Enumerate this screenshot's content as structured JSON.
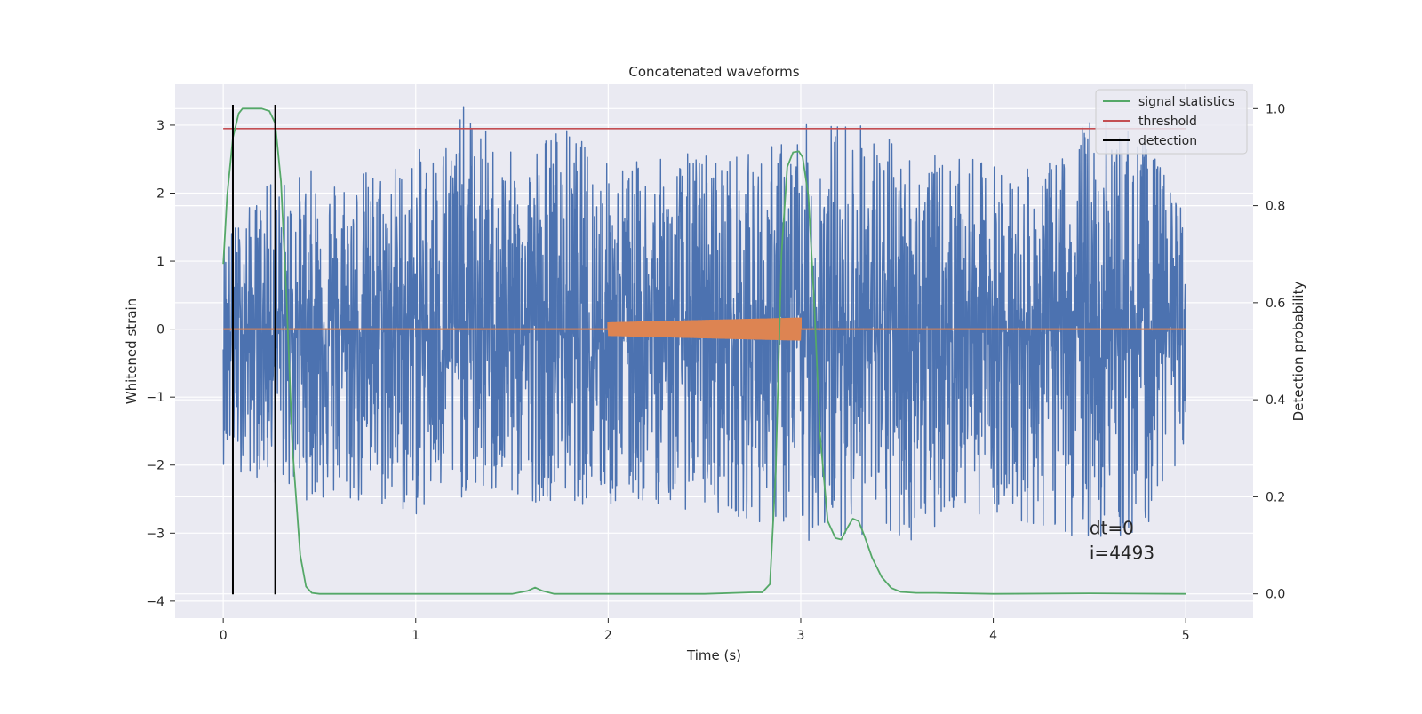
{
  "chart_data": {
    "type": "line",
    "title": "Concatenated waveforms",
    "xlabel": "Time (s)",
    "ylabel": "Whitened strain",
    "y2label": "Detection probability",
    "xlim": [
      -0.25,
      5.35
    ],
    "ylim": [
      -4.25,
      3.6
    ],
    "y2lim": [
      -0.05,
      1.05
    ],
    "xticks": [
      0,
      1,
      2,
      3,
      4,
      5
    ],
    "yticks": [
      -4,
      -3,
      -2,
      -1,
      0,
      1,
      2,
      3
    ],
    "y2ticks": [
      0.0,
      0.2,
      0.4,
      0.6,
      0.8,
      1.0
    ],
    "xtick_labels": [
      "0",
      "1",
      "2",
      "3",
      "4",
      "5"
    ],
    "ytick_labels": [
      "−4",
      "−3",
      "−2",
      "−1",
      "0",
      "1",
      "2",
      "3"
    ],
    "y2tick_labels": [
      "0.0",
      "0.2",
      "0.4",
      "0.6",
      "0.8",
      "1.0"
    ],
    "grid": true,
    "legend_position": "top-right",
    "colors": {
      "background": "#eaeaf2",
      "grid": "#ffffff",
      "noise": "#4c72b0",
      "injection": "#dd8452",
      "signal_statistics": "#55a868",
      "threshold": "#c44e52",
      "detection": "#000000"
    },
    "series": [
      {
        "name": "signal statistics",
        "axis": "right",
        "x": [
          0.0,
          0.02,
          0.05,
          0.08,
          0.1,
          0.15,
          0.2,
          0.24,
          0.27,
          0.3,
          0.33,
          0.36,
          0.4,
          0.43,
          0.46,
          0.5,
          1.0,
          1.5,
          1.58,
          1.62,
          1.66,
          1.72,
          2.0,
          2.5,
          2.75,
          2.8,
          2.84,
          2.87,
          2.9,
          2.93,
          2.96,
          2.99,
          3.01,
          3.04,
          3.07,
          3.1,
          3.14,
          3.18,
          3.21,
          3.24,
          3.27,
          3.3,
          3.33,
          3.37,
          3.42,
          3.47,
          3.52,
          3.6,
          3.7,
          4.0,
          4.5,
          5.0
        ],
        "y": [
          0.68,
          0.82,
          0.94,
          0.99,
          1.0,
          1.0,
          1.0,
          0.995,
          0.97,
          0.85,
          0.6,
          0.3,
          0.08,
          0.015,
          0.002,
          0.0,
          0.0,
          0.0,
          0.006,
          0.013,
          0.006,
          0.0,
          0.0,
          0.0,
          0.003,
          0.003,
          0.02,
          0.25,
          0.7,
          0.88,
          0.91,
          0.912,
          0.9,
          0.82,
          0.6,
          0.33,
          0.15,
          0.115,
          0.112,
          0.135,
          0.155,
          0.15,
          0.12,
          0.075,
          0.035,
          0.012,
          0.004,
          0.002,
          0.002,
          0.0,
          0.001,
          0.0
        ]
      },
      {
        "name": "threshold",
        "axis": "left",
        "x": [
          0.0,
          5.0
        ],
        "y": [
          2.95,
          2.95
        ]
      },
      {
        "name": "detection",
        "axis": "left",
        "x": [
          0.05,
          0.27
        ],
        "y": [
          -3.9,
          3.3
        ]
      }
    ],
    "noise_envelope": {
      "axis": "left",
      "t": [
        0.0,
        0.25,
        0.5,
        0.75,
        1.0,
        1.25,
        1.5,
        1.75,
        2.0,
        2.25,
        2.5,
        2.75,
        3.0,
        3.25,
        3.5,
        3.75,
        4.0,
        4.25,
        4.5,
        4.75,
        5.0
      ],
      "upper": [
        1.4,
        2.2,
        2.4,
        2.4,
        2.6,
        3.3,
        2.6,
        3.1,
        2.5,
        2.5,
        2.7,
        2.6,
        3.0,
        3.2,
        2.8,
        2.5,
        2.5,
        2.3,
        3.2,
        3.0,
        1.8
      ],
      "lower": [
        -2.0,
        -2.3,
        -2.6,
        -2.7,
        -2.8,
        -2.5,
        -2.6,
        -2.5,
        -2.7,
        -2.6,
        -2.7,
        -2.8,
        -3.2,
        -3.0,
        -3.3,
        -2.8,
        -2.7,
        -3.0,
        -3.1,
        -3.2,
        -1.7
      ]
    },
    "injection": {
      "axis": "left",
      "t_start": 2.0,
      "t_end": 3.0,
      "amp_start": 0.1,
      "amp_end": 0.17
    },
    "annotations": [
      "dt=0",
      "i=4493"
    ]
  }
}
